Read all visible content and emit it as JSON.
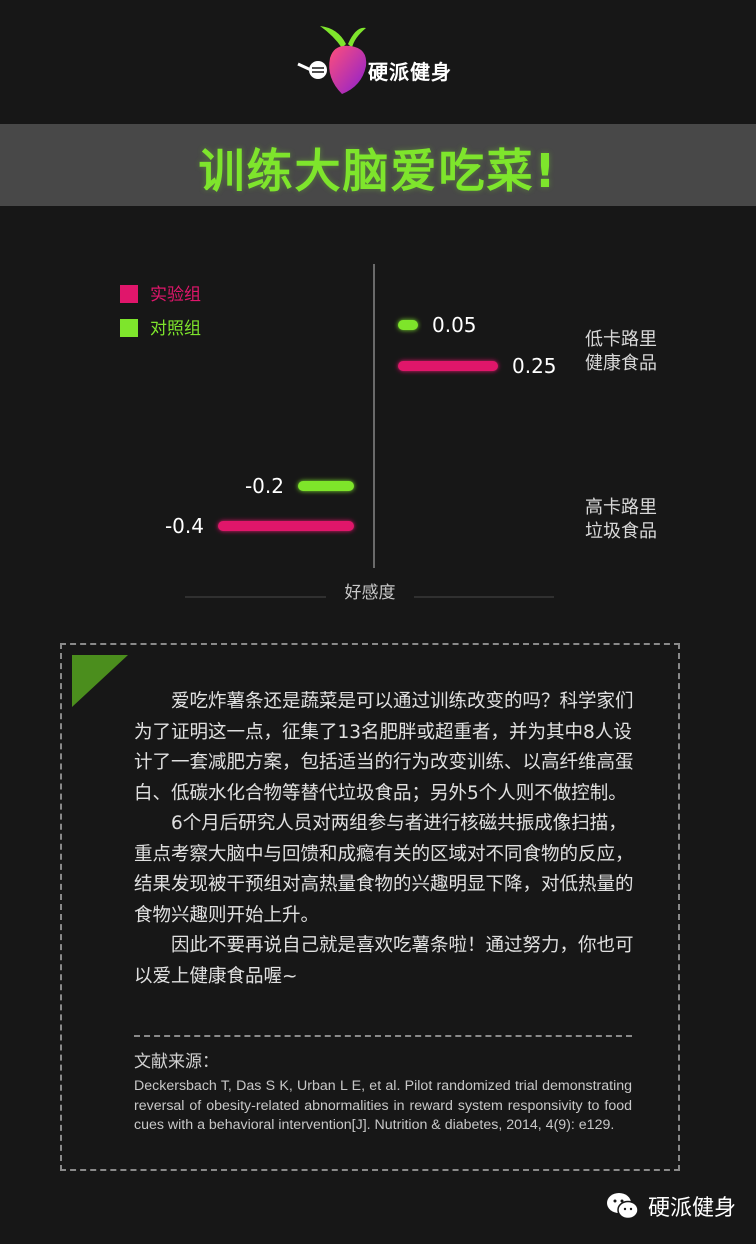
{
  "brand": {
    "name": "硬派健身"
  },
  "banner": {
    "title": "训练大脑爱吃菜!"
  },
  "colors": {
    "experimental": "#e0166b",
    "control": "#7ee52c",
    "accent": "#7ee52c"
  },
  "chart_data": {
    "type": "bar",
    "orientation": "horizontal",
    "xlabel": "好感度",
    "xlim": [
      -0.5,
      0.32
    ],
    "categories": [
      "低卡路里\n健康食品",
      "高卡路里\n垃圾食品"
    ],
    "category_lines": [
      [
        "低卡路里",
        "健康食品"
      ],
      [
        "高卡路里",
        "垃圾食品"
      ]
    ],
    "series": [
      {
        "name": "实验组",
        "color": "#e0166b",
        "values": [
          0.25,
          -0.4
        ],
        "labels": [
          "0.25",
          "-0.4"
        ]
      },
      {
        "name": "对照组",
        "color": "#7ee52c",
        "values": [
          0.05,
          -0.2
        ],
        "labels": [
          "0.05",
          "-0.2"
        ]
      }
    ],
    "legend": [
      "实验组",
      "对照组"
    ],
    "legend_position": "top-left"
  },
  "article": {
    "paragraphs": [
      "爱吃炸薯条还是蔬菜是可以通过训练改变的吗？科学家们为了证明这一点，征集了13名肥胖或超重者，并为其中8人设计了一套减肥方案，包括适当的行为改变训练、以高纤维高蛋白、低碳水化合物等替代垃圾食品；另外5个人则不做控制。",
      "6个月后研究人员对两组参与者进行核磁共振成像扫描，重点考察大脑中与回馈和成瘾有关的区域对不同食物的反应，结果发现被干预组对高热量食物的兴趣明显下降，对低热量的食物兴趣则开始上升。",
      "因此不要再说自己就是喜欢吃薯条啦！通过努力，你也可以爱上健康食品喔~"
    ],
    "ref_title": "文献来源：",
    "reference": "Deckersbach T, Das S K, Urban L E, et al. Pilot randomized trial demonstrating reversal of obesity-related abnormalities in reward system responsivity to food cues with a behavioral intervention[J]. Nutrition & diabetes, 2014, 4(9): e129."
  },
  "watermark": {
    "text": "硬派健身",
    "icon": "wechat-icon"
  }
}
